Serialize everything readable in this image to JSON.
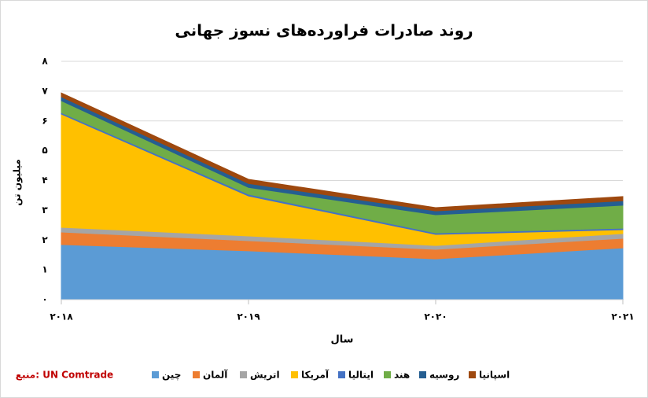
{
  "chart_data": {
    "type": "stacked-area",
    "title": "روند صادرات فراورده‌های نسوز جهانی",
    "y_label": "میلیون تن",
    "x_label": "سال",
    "source": "منبع: UN Comtrade",
    "categories": [
      "۲۰۱۸",
      "۲۰۱۹",
      "۲۰۲۰",
      "۲۰۲۱"
    ],
    "ylim": [
      0,
      8
    ],
    "yticks": [
      {
        "value": 0,
        "label": "۰"
      },
      {
        "value": 1,
        "label": "۱"
      },
      {
        "value": 2,
        "label": "۲"
      },
      {
        "value": 3,
        "label": "۳"
      },
      {
        "value": 4,
        "label": "۴"
      },
      {
        "value": 5,
        "label": "۵"
      },
      {
        "value": 6,
        "label": "۶"
      },
      {
        "value": 7,
        "label": "۷"
      },
      {
        "value": 8,
        "label": "۸"
      }
    ],
    "grid": true,
    "series": [
      {
        "name": "چین",
        "color": "#5b9bd5",
        "values": [
          1.85,
          1.64,
          1.37,
          1.74
        ]
      },
      {
        "name": "آلمان",
        "color": "#ed7d31",
        "values": [
          0.42,
          0.34,
          0.32,
          0.32
        ]
      },
      {
        "name": "اتریش",
        "color": "#a5a5a5",
        "values": [
          0.16,
          0.16,
          0.13,
          0.16
        ]
      },
      {
        "name": "آمریکا",
        "color": "#ffc000",
        "values": [
          3.8,
          1.34,
          0.37,
          0.13
        ]
      },
      {
        "name": "ایتالیا",
        "color": "#4472c4",
        "values": [
          0.05,
          0.06,
          0.05,
          0.05
        ]
      },
      {
        "name": "هند",
        "color": "#70ad47",
        "values": [
          0.4,
          0.23,
          0.61,
          0.77
        ]
      },
      {
        "name": "روسیه",
        "color": "#255e91",
        "values": [
          0.13,
          0.13,
          0.13,
          0.15
        ]
      },
      {
        "name": "اسپانیا",
        "color": "#9e480e",
        "values": [
          0.13,
          0.14,
          0.11,
          0.14
        ]
      }
    ]
  }
}
